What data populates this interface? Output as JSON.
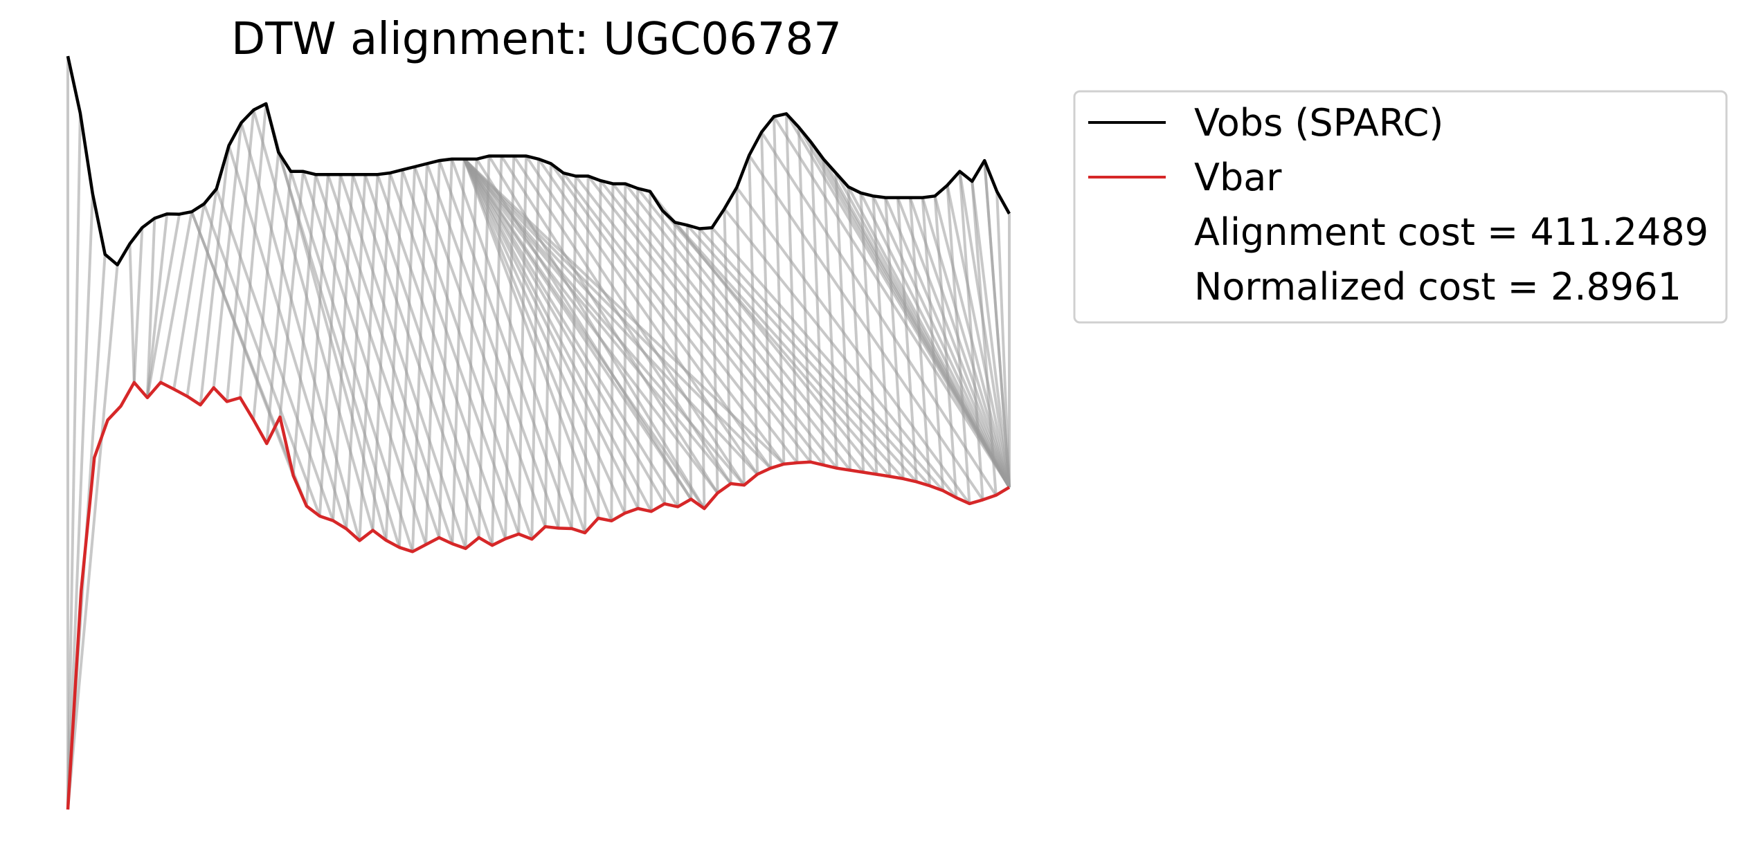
{
  "chart_data": {
    "type": "line",
    "title": "DTW alignment: UGC06787",
    "xlabel": "",
    "ylabel": "",
    "axes_visible": false,
    "grid": false,
    "legend_position": "outside-top-right",
    "series": [
      {
        "name": "Vobs (SPARC)",
        "color": "#000000",
        "values": [
          0.2655,
          0.1925,
          0.0891,
          0.0115,
          -0.002,
          0.025,
          0.0457,
          0.0577,
          0.0633,
          0.0629,
          0.066,
          0.0761,
          0.0955,
          0.1508,
          0.1801,
          0.1965,
          0.2045,
          0.1425,
          0.1177,
          0.1177,
          0.1138,
          0.1138,
          0.1138,
          0.1138,
          0.1138,
          0.1138,
          0.1158,
          0.1198,
          0.1237,
          0.1277,
          0.1316,
          0.1336,
          0.1336,
          0.1336,
          0.1375,
          0.1375,
          0.1375,
          0.1375,
          0.1336,
          0.1277,
          0.1158,
          0.1118,
          0.1118,
          0.1059,
          0.1019,
          0.1019,
          0.096,
          0.0921,
          0.0677,
          0.0525,
          0.0489,
          0.0444,
          0.0456,
          0.0698,
          0.0972,
          0.1384,
          0.1681,
          0.188,
          0.1917,
          0.1745,
          0.155,
          0.1335,
          0.1158,
          0.098,
          0.0902,
          0.0862,
          0.0842,
          0.0842,
          0.0842,
          0.0842,
          0.0862,
          0.1,
          0.1178,
          0.105,
          0.1316,
          0.0921,
          0.0635
        ]
      },
      {
        "name": "Vbar",
        "color": "#d62728",
        "values": [
          -0.7,
          -0.42,
          -0.249,
          -0.201,
          -0.183,
          -0.1527,
          -0.1722,
          -0.1526,
          -0.1613,
          -0.1705,
          -0.1815,
          -0.1595,
          -0.1772,
          -0.1723,
          -0.2006,
          -0.231,
          -0.197,
          -0.272,
          -0.3111,
          -0.324,
          -0.3298,
          -0.3403,
          -0.3553,
          -0.3422,
          -0.355,
          -0.3641,
          -0.3695,
          -0.3605,
          -0.3516,
          -0.3595,
          -0.3655,
          -0.3516,
          -0.3615,
          -0.353,
          -0.347,
          -0.3536,
          -0.3375,
          -0.3395,
          -0.34,
          -0.3454,
          -0.3267,
          -0.3301,
          -0.3203,
          -0.3143,
          -0.318,
          -0.3083,
          -0.312,
          -0.3023,
          -0.3144,
          -0.2944,
          -0.2824,
          -0.2843,
          -0.2704,
          -0.2626,
          -0.2573,
          -0.2557,
          -0.2546,
          -0.2586,
          -0.2626,
          -0.2652,
          -0.2678,
          -0.2705,
          -0.2731,
          -0.2761,
          -0.28,
          -0.2851,
          -0.2913,
          -0.3004,
          -0.308,
          -0.3031,
          -0.2973,
          -0.2871
        ]
      }
    ],
    "alignment_pairs": [
      [
        0,
        0
      ],
      [
        1,
        0
      ],
      [
        2,
        0
      ],
      [
        3,
        0
      ],
      [
        4,
        0
      ],
      [
        5,
        5
      ],
      [
        6,
        5
      ],
      [
        7,
        6
      ],
      [
        8,
        6
      ],
      [
        9,
        6
      ],
      [
        10,
        7
      ],
      [
        11,
        8
      ],
      [
        12,
        9
      ],
      [
        13,
        10
      ],
      [
        14,
        11
      ],
      [
        15,
        12
      ],
      [
        16,
        13
      ],
      [
        17,
        14
      ],
      [
        18,
        15
      ],
      [
        19,
        16
      ],
      [
        20,
        17
      ],
      [
        21,
        18
      ],
      [
        22,
        19
      ],
      [
        23,
        20
      ],
      [
        24,
        21
      ],
      [
        25,
        22
      ],
      [
        26,
        23
      ],
      [
        27,
        24
      ],
      [
        28,
        25
      ],
      [
        29,
        26
      ],
      [
        30,
        27
      ],
      [
        31,
        28
      ],
      [
        32,
        29
      ],
      [
        33,
        30
      ],
      [
        34,
        31
      ],
      [
        35,
        32
      ],
      [
        36,
        33
      ],
      [
        37,
        34
      ],
      [
        38,
        35
      ],
      [
        39,
        36
      ],
      [
        40,
        37
      ],
      [
        41,
        38
      ],
      [
        42,
        39
      ],
      [
        43,
        40
      ],
      [
        44,
        41
      ],
      [
        45,
        42
      ],
      [
        46,
        43
      ],
      [
        47,
        44
      ],
      [
        48,
        45
      ],
      [
        49,
        46
      ],
      [
        50,
        47
      ],
      [
        51,
        48
      ],
      [
        52,
        49
      ],
      [
        53,
        50
      ],
      [
        54,
        51
      ],
      [
        55,
        52
      ],
      [
        56,
        53
      ],
      [
        57,
        54
      ],
      [
        58,
        55
      ],
      [
        59,
        56
      ],
      [
        60,
        57
      ],
      [
        61,
        58
      ],
      [
        62,
        59
      ],
      [
        63,
        60
      ],
      [
        64,
        61
      ],
      [
        65,
        62
      ],
      [
        66,
        63
      ],
      [
        67,
        64
      ],
      [
        68,
        65
      ],
      [
        69,
        66
      ],
      [
        70,
        67
      ],
      [
        71,
        68
      ],
      [
        72,
        69
      ],
      [
        73,
        70
      ],
      [
        74,
        71
      ],
      [
        75,
        71
      ],
      [
        76,
        71
      ],
      [
        10,
        17
      ],
      [
        10,
        18
      ],
      [
        11,
        19
      ],
      [
        12,
        20
      ],
      [
        13,
        21
      ],
      [
        14,
        22
      ],
      [
        15,
        23
      ],
      [
        16,
        24
      ],
      [
        17,
        25
      ],
      [
        18,
        26
      ],
      [
        19,
        27
      ],
      [
        20,
        28
      ],
      [
        21,
        29
      ],
      [
        22,
        30
      ],
      [
        23,
        31
      ],
      [
        24,
        32
      ],
      [
        25,
        33
      ],
      [
        26,
        34
      ],
      [
        27,
        35
      ],
      [
        28,
        36
      ],
      [
        29,
        37
      ],
      [
        30,
        38
      ],
      [
        31,
        39
      ],
      [
        32,
        40
      ],
      [
        32,
        41
      ],
      [
        32,
        42
      ],
      [
        32,
        43
      ],
      [
        32,
        44
      ],
      [
        32,
        45
      ],
      [
        32,
        46
      ],
      [
        32,
        47
      ],
      [
        32,
        48
      ],
      [
        32,
        49
      ],
      [
        32,
        50
      ],
      [
        32,
        51
      ],
      [
        32,
        52
      ],
      [
        32,
        53
      ],
      [
        32,
        54
      ],
      [
        33,
        47
      ],
      [
        34,
        48
      ],
      [
        35,
        49
      ],
      [
        36,
        50
      ],
      [
        37,
        51
      ],
      [
        38,
        52
      ],
      [
        39,
        53
      ],
      [
        40,
        54
      ],
      [
        41,
        55
      ],
      [
        42,
        56
      ],
      [
        43,
        57
      ],
      [
        44,
        58
      ],
      [
        45,
        59
      ],
      [
        46,
        60
      ],
      [
        47,
        61
      ],
      [
        48,
        62
      ],
      [
        49,
        63
      ],
      [
        50,
        64
      ],
      [
        51,
        65
      ],
      [
        52,
        66
      ],
      [
        53,
        67
      ],
      [
        54,
        68
      ],
      [
        55,
        69
      ],
      [
        56,
        70
      ],
      [
        57,
        71
      ],
      [
        58,
        71
      ],
      [
        59,
        71
      ],
      [
        60,
        71
      ],
      [
        61,
        71
      ],
      [
        62,
        71
      ],
      [
        63,
        71
      ],
      [
        64,
        71
      ],
      [
        65,
        71
      ],
      [
        66,
        71
      ],
      [
        67,
        71
      ],
      [
        68,
        71
      ],
      [
        69,
        71
      ],
      [
        70,
        71
      ],
      [
        71,
        71
      ],
      [
        72,
        71
      ],
      [
        73,
        71
      ],
      [
        74,
        71
      ]
    ],
    "legend": {
      "entries": [
        "Vobs (SPARC)",
        "Vbar"
      ],
      "text_lines": [
        "Alignment cost = 411.2489",
        "Normalized cost = 2.8961"
      ]
    }
  }
}
